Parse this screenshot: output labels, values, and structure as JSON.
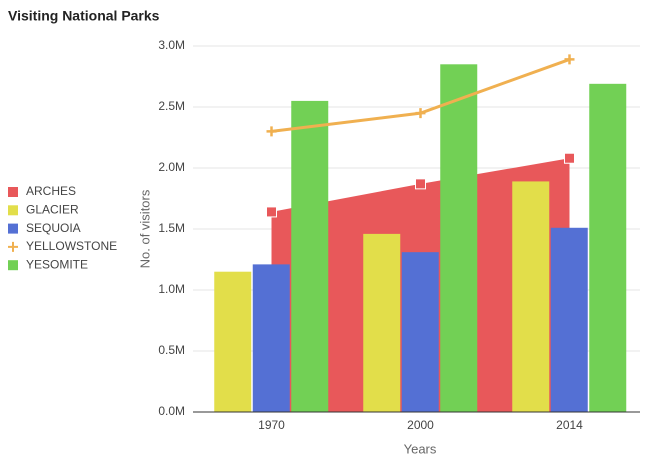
{
  "chart_data": {
    "type": "bar",
    "title": "Visiting National Parks",
    "x_label": "Years",
    "y_label": "No. of visitors",
    "categories": [
      "1970",
      "2000",
      "2014"
    ],
    "series": [
      {
        "name": "ARCHES",
        "type": "area",
        "color": "#e8585a",
        "values": [
          1640000,
          1870000,
          2080000
        ]
      },
      {
        "name": "GLACIER",
        "type": "bar",
        "color": "#e2de4a",
        "values": [
          1150000,
          1460000,
          1890000
        ]
      },
      {
        "name": "SEQUOIA",
        "type": "bar",
        "color": "#5470d4",
        "values": [
          1210000,
          1310000,
          1510000
        ]
      },
      {
        "name": "YELLOWSTONE",
        "type": "line",
        "color": "#f0b050",
        "values": [
          2300000,
          2450000,
          2890000
        ]
      },
      {
        "name": "YESOMITE",
        "type": "bar",
        "color": "#72d055",
        "values": [
          2550000,
          2850000,
          2690000
        ]
      }
    ],
    "ylim": [
      0,
      3000000
    ],
    "yticks": [
      {
        "value": 0,
        "label": "0.0M"
      },
      {
        "value": 500000,
        "label": "0.5M"
      },
      {
        "value": 1000000,
        "label": "1.0M"
      },
      {
        "value": 1500000,
        "label": "1.5M"
      },
      {
        "value": 2000000,
        "label": "2.0M"
      },
      {
        "value": 2500000,
        "label": "2.5M"
      },
      {
        "value": 3000000,
        "label": "3.0M"
      }
    ],
    "grid": true,
    "legend": "left"
  }
}
